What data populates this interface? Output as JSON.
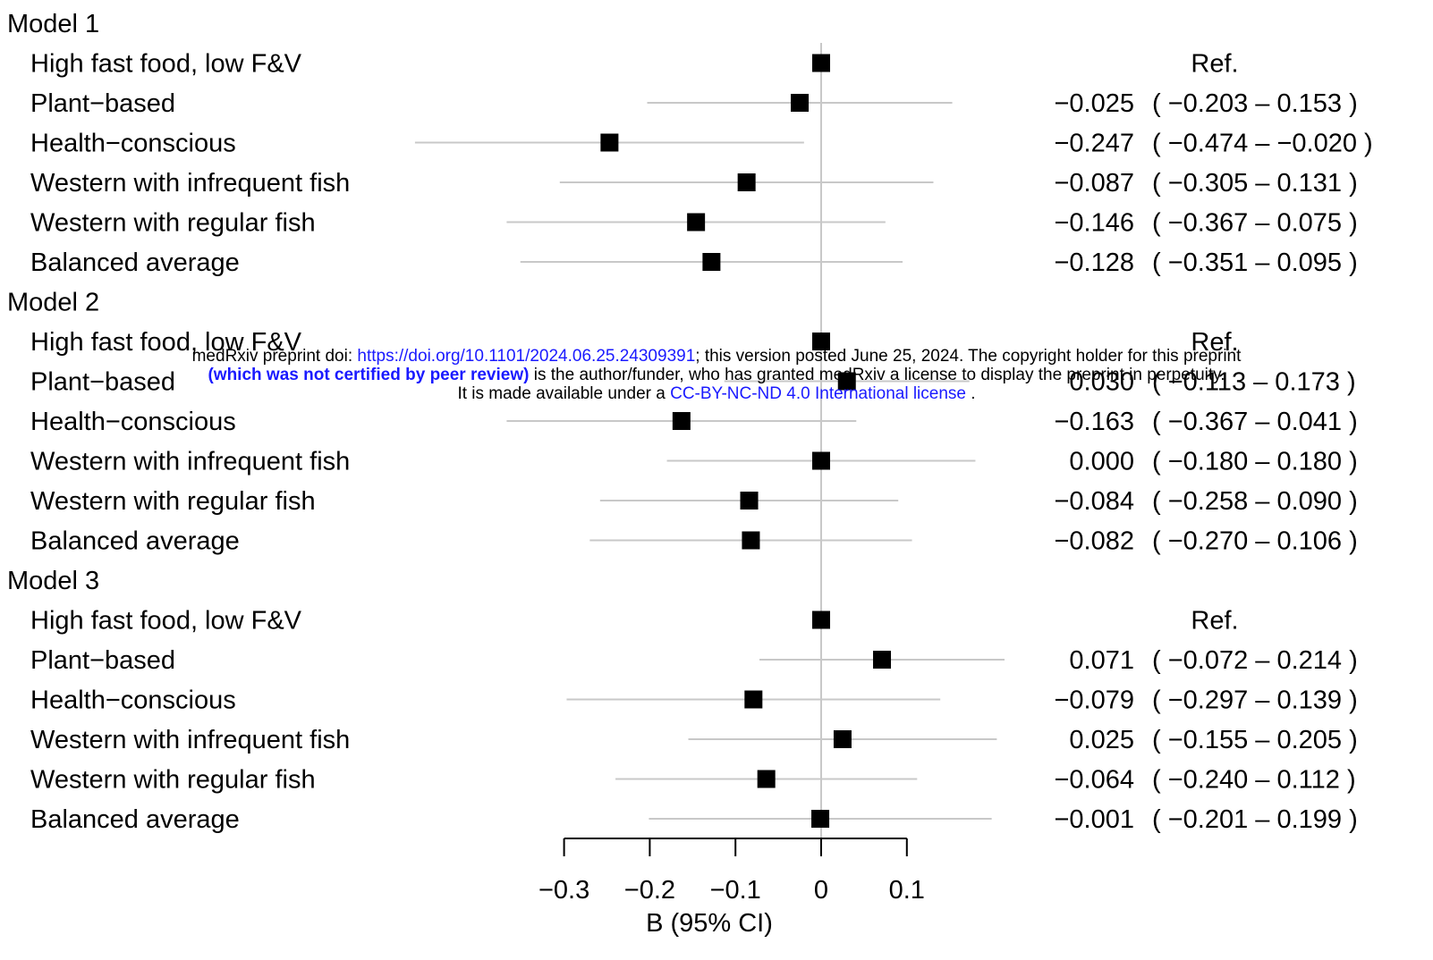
{
  "chart_data": {
    "type": "forest",
    "xlabel": "B (95% CI)",
    "xticks": [
      -0.3,
      -0.2,
      -0.1,
      0,
      0.1
    ],
    "xtick_labels": [
      "−0.3",
      "−0.2",
      "−0.1",
      "0",
      "0.1"
    ],
    "xlim": [
      -0.474,
      0.214
    ],
    "reference_line": 0,
    "groups": [
      {
        "name": "Model 1",
        "rows": [
          {
            "label": "High fast food, low F&V",
            "est": 0.0,
            "lo": null,
            "hi": null,
            "text": "Ref."
          },
          {
            "label": "Plant−based",
            "est": -0.025,
            "lo": -0.203,
            "hi": 0.153,
            "text": "−0.025  ( −0.203 –  0.153 )"
          },
          {
            "label": "Health−conscious",
            "est": -0.247,
            "lo": -0.474,
            "hi": -0.02,
            "text": "−0.247  ( −0.474 – −0.020 )"
          },
          {
            "label": "Western with infrequent fish",
            "est": -0.087,
            "lo": -0.305,
            "hi": 0.131,
            "text": "−0.087  ( −0.305 –  0.131 )"
          },
          {
            "label": "Western with regular fish",
            "est": -0.146,
            "lo": -0.367,
            "hi": 0.075,
            "text": "−0.146  ( −0.367 –  0.075 )"
          },
          {
            "label": "Balanced average",
            "est": -0.128,
            "lo": -0.351,
            "hi": 0.095,
            "text": "−0.128  ( −0.351 –  0.095 )"
          }
        ]
      },
      {
        "name": "Model 2",
        "rows": [
          {
            "label": "High fast food, low F&V",
            "est": 0.0,
            "lo": null,
            "hi": null,
            "text": "Ref."
          },
          {
            "label": "Plant−based",
            "est": 0.03,
            "lo": -0.113,
            "hi": 0.173,
            "text": "0.030  ( −0.113 –  0.173 )"
          },
          {
            "label": "Health−conscious",
            "est": -0.163,
            "lo": -0.367,
            "hi": 0.041,
            "text": "−0.163  ( −0.367 –  0.041 )"
          },
          {
            "label": "Western with infrequent fish",
            "est": 0.0,
            "lo": -0.18,
            "hi": 0.18,
            "text": "0.000  ( −0.180 –  0.180 )"
          },
          {
            "label": "Western with regular fish",
            "est": -0.084,
            "lo": -0.258,
            "hi": 0.09,
            "text": "−0.084  ( −0.258 –  0.090 )"
          },
          {
            "label": "Balanced average",
            "est": -0.082,
            "lo": -0.27,
            "hi": 0.106,
            "text": "−0.082  ( −0.270 –  0.106 )"
          }
        ]
      },
      {
        "name": "Model 3",
        "rows": [
          {
            "label": "High fast food, low F&V",
            "est": 0.0,
            "lo": null,
            "hi": null,
            "text": "Ref."
          },
          {
            "label": "Plant−based",
            "est": 0.071,
            "lo": -0.072,
            "hi": 0.214,
            "text": "0.071  ( −0.072 –  0.214 )"
          },
          {
            "label": "Health−conscious",
            "est": -0.079,
            "lo": -0.297,
            "hi": 0.139,
            "text": "−0.079  ( −0.297 –  0.139 )"
          },
          {
            "label": "Western with infrequent fish",
            "est": 0.025,
            "lo": -0.155,
            "hi": 0.205,
            "text": "0.025  ( −0.155 –  0.205 )"
          },
          {
            "label": "Western with regular fish",
            "est": -0.064,
            "lo": -0.24,
            "hi": 0.112,
            "text": "−0.064  ( −0.240 –  0.112 )"
          },
          {
            "label": "Balanced average",
            "est": -0.001,
            "lo": -0.201,
            "hi": 0.199,
            "text": "−0.001  ( −0.201 –  0.199 )"
          }
        ]
      }
    ],
    "colors": {
      "marker": "#000000",
      "ci_line": "#c8c8c8",
      "ref_line": "#c8c8c8",
      "axis": "#000000"
    }
  },
  "watermark": {
    "line1_prefix": "medRxiv preprint doi: ",
    "line1_link": "https://doi.org/10.1101/2024.06.25.24309391",
    "line1_suffix": "; this version posted June 25, 2024. The copyright holder for this preprint",
    "line2_strong": "(which was not certified by peer review)",
    "line2_suffix": " is the author/funder, who has granted medRxiv a license to display the preprint in perpetuity.",
    "line3_prefix": "It is made available under a ",
    "line3_link": "CC-BY-NC-ND 4.0 International license",
    "line3_suffix": " .",
    "link_color": "#1a1aff"
  }
}
